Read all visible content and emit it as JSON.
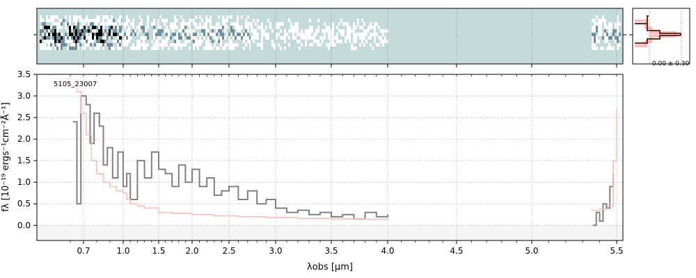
{
  "chart_data": [
    {
      "type": "heatmap",
      "title": "",
      "yticks_labeled": false,
      "colormap": [
        "#c3dbdb",
        "#ffffff",
        "#6f8f9a",
        "#000000"
      ]
    },
    {
      "type": "line",
      "xlabel": "λobs [μm]",
      "ylabel": "fλ [10⁻¹⁹ ergs⁻¹cm⁻²Å⁻¹]",
      "annotation": "5105_23007",
      "xticks": [
        0.7,
        1.0,
        1.5,
        2.0,
        2.5,
        3.0,
        3.5,
        4.0,
        4.5,
        5.0,
        5.5
      ],
      "xtick_labels": [
        "0.7",
        "1.0",
        "1.5",
        "2.0",
        "2.5",
        "3.0",
        "3.5",
        "4.0",
        "4.5",
        "5.0",
        "5.5"
      ],
      "yticks": [
        0.0,
        0.5,
        1.0,
        1.5,
        2.0,
        2.5,
        3.0,
        3.5
      ],
      "ytick_labels": [
        "0.0",
        "0.5",
        "1.0",
        "1.5",
        "2.0",
        "2.5",
        "3.0",
        "3.5"
      ],
      "ylim": [
        -0.35,
        3.5
      ],
      "grid": true,
      "series": [
        {
          "color": "#808080",
          "x": [
            0.62,
            0.65,
            0.68,
            0.72,
            0.75,
            0.78,
            0.82,
            0.85,
            0.88,
            0.92,
            0.96,
            1.0,
            1.05,
            1.1,
            1.2,
            1.3,
            1.4,
            1.5,
            1.6,
            1.7,
            1.8,
            1.9,
            2.0,
            2.1,
            2.2,
            2.3,
            2.4,
            2.5,
            2.6,
            2.7,
            2.8,
            2.9,
            3.0,
            3.1,
            3.2,
            3.3,
            3.4,
            3.5,
            3.6,
            3.7,
            3.8,
            3.9,
            4.0
          ],
          "y": [
            2.4,
            0.5,
            3.0,
            2.8,
            1.9,
            2.6,
            2.3,
            1.4,
            1.8,
            1.1,
            1.7,
            0.9,
            1.2,
            0.6,
            1.5,
            1.1,
            1.7,
            1.3,
            1.2,
            0.9,
            1.4,
            1.0,
            1.3,
            0.9,
            1.1,
            0.7,
            0.8,
            0.9,
            0.6,
            0.8,
            0.5,
            0.6,
            0.4,
            0.3,
            0.35,
            0.25,
            0.3,
            0.2,
            0.25,
            0.15,
            0.3,
            0.2,
            0.25
          ]
        },
        {
          "color": "#808080",
          "x": [
            5.36,
            5.38,
            5.4,
            5.42,
            5.44,
            5.46,
            5.48
          ],
          "y": [
            0.0,
            0.3,
            0.1,
            0.5,
            0.4,
            0.9,
            1.2
          ]
        },
        {
          "color": "#ffbcbc",
          "x": [
            0.62,
            0.65,
            0.68,
            0.72,
            0.76,
            0.8,
            0.85,
            0.9,
            0.95,
            1.0,
            1.05,
            1.1,
            1.2,
            1.3,
            1.5,
            1.7,
            2.0,
            2.3,
            2.6,
            2.9,
            3.2,
            3.5,
            3.8,
            4.0
          ],
          "y": [
            3.3,
            3.1,
            2.6,
            2.1,
            1.5,
            1.2,
            1.0,
            0.9,
            0.8,
            0.75,
            0.6,
            0.5,
            0.45,
            0.4,
            0.3,
            0.28,
            0.25,
            0.22,
            0.2,
            0.18,
            0.16,
            0.15,
            0.14,
            0.16
          ]
        },
        {
          "color": "#ffbcbc",
          "x": [
            5.35,
            5.4,
            5.45,
            5.48,
            5.5
          ],
          "y": [
            0.35,
            0.38,
            0.45,
            1.5,
            2.7
          ]
        }
      ]
    },
    {
      "type": "line",
      "annotation": "-0.00 ± 0.30",
      "profile_colors": [
        "#6b2a20",
        "#ffbcbc"
      ]
    }
  ]
}
